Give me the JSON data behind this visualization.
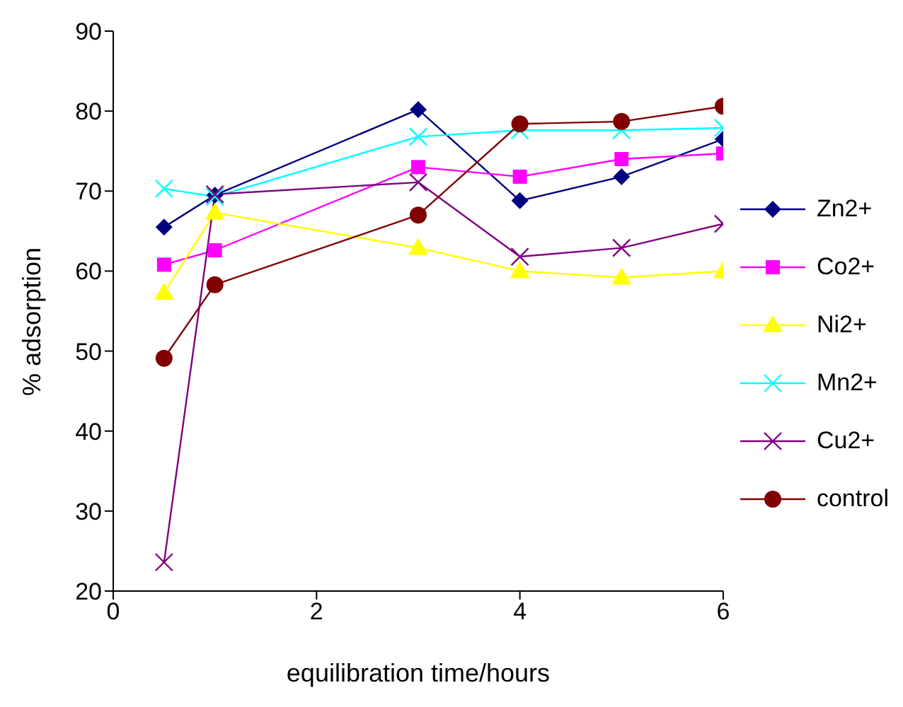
{
  "chart_data": {
    "type": "line",
    "xlabel": "equilibration time/hours",
    "ylabel": "% adsorption",
    "x": [
      0.5,
      1,
      3,
      4,
      5,
      6
    ],
    "series": [
      {
        "name": "Zn2+",
        "color": "#000080",
        "marker": "diamond",
        "values": [
          65.5,
          69.5,
          80.2,
          68.8,
          71.8,
          76.5
        ]
      },
      {
        "name": "Co2+",
        "color": "#ff00ff",
        "marker": "square",
        "values": [
          60.8,
          62.6,
          73,
          71.8,
          74,
          74.7
        ]
      },
      {
        "name": "Ni2+",
        "color": "#ffff00",
        "marker": "triangle",
        "values": [
          57.3,
          67.3,
          62.9,
          60,
          59.2,
          60
        ]
      },
      {
        "name": "Mn2+",
        "color": "#00ffff",
        "marker": "cross",
        "values": [
          70.3,
          69.3,
          76.8,
          77.6,
          77.6,
          77.9
        ]
      },
      {
        "name": "Cu2+",
        "color": "#800080",
        "marker": "cross",
        "values": [
          23.6,
          69.6,
          71.1,
          61.8,
          62.9,
          65.9
        ]
      },
      {
        "name": "control",
        "color": "#800000",
        "marker": "circle",
        "values": [
          49.1,
          58.3,
          67,
          78.4,
          78.7,
          80.6
        ]
      }
    ],
    "xlim": [
      0,
      6
    ],
    "xticks": [
      0,
      2,
      4,
      6
    ],
    "ylim": [
      20,
      90
    ],
    "yticks": [
      20,
      30,
      40,
      50,
      60,
      70,
      80,
      90
    ],
    "grid": false,
    "legend": "right",
    "line_style": "solid"
  }
}
